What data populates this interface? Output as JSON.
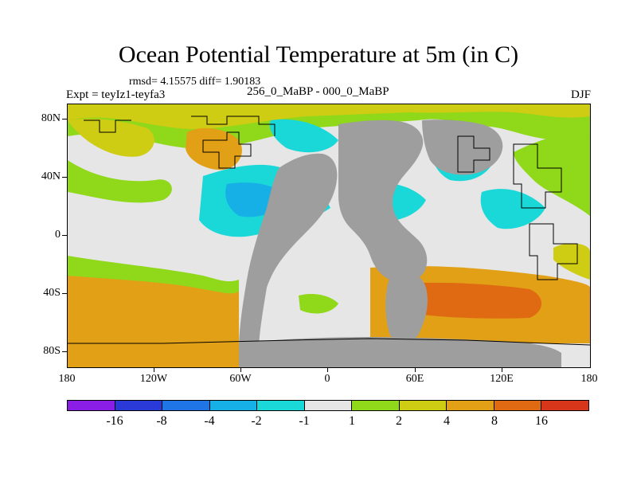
{
  "title": "Ocean Potential Temperature at 5m (in C)",
  "stats": "rmsd= 4.15575 diff= 1.90183",
  "left_label": "Expt = teyIz1-teyfa3",
  "center_label": "256_0_MaBP - 000_0_MaBP",
  "right_label": "DJF",
  "y_ticks": [
    "80N",
    "40N",
    "0",
    "40S",
    "80S"
  ],
  "x_ticks": [
    "180",
    "120W",
    "60W",
    "0",
    "60E",
    "120E",
    "180"
  ],
  "colorbar": {
    "colors": [
      "#8a1ee6",
      "#2a3ad8",
      "#1f74e6",
      "#17b0e6",
      "#1ad8d8",
      "#e6e6e6",
      "#8fd81a",
      "#cfcc14",
      "#e2a016",
      "#e06a12",
      "#d8361a"
    ],
    "labels": [
      "-16",
      "-8",
      "-4",
      "-2",
      "-1",
      "1",
      "2",
      "4",
      "8",
      "16"
    ]
  },
  "map_colors": {
    "land": "#9e9e9e",
    "neutral": "#e6e6e6",
    "green": "#8fd81a",
    "yellow": "#cfcc14",
    "orange": "#e2a016",
    "dark_orange": "#e06a12",
    "cyan": "#1ad8d8",
    "light_blue": "#17b0e6",
    "blue": "#1f74e6"
  }
}
